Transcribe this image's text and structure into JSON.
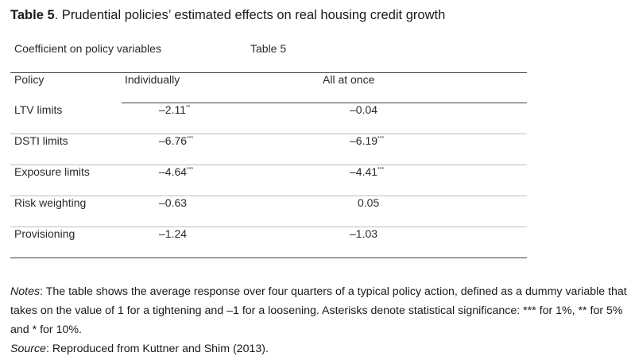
{
  "title": {
    "label": "Table 5",
    "text": ". Prudential policies’ estimated effects on real housing credit growth"
  },
  "caption": "Coefficient on policy variables",
  "table_label": "Table 5",
  "columns": [
    "Policy",
    "Individually",
    "All at once"
  ],
  "rows": [
    {
      "policy": "LTV limits",
      "individually": "–2.11",
      "ind_sig": "**",
      "all": "–0.04",
      "all_sig": ""
    },
    {
      "policy": "DSTI limits",
      "individually": "–6.76",
      "ind_sig": "***",
      "all": "–6.19",
      "all_sig": "***"
    },
    {
      "policy": "Exposure limits",
      "individually": "–4.64",
      "ind_sig": "***",
      "all": "–4.41",
      "all_sig": "***"
    },
    {
      "policy": "Risk weighting",
      "individually": "–0.63",
      "ind_sig": "",
      "all": "0.05",
      "all_sig": ""
    },
    {
      "policy": "Provisioning",
      "individually": "–1.24",
      "ind_sig": "",
      "all": "–1.03",
      "all_sig": ""
    }
  ],
  "notes": {
    "label": "Notes",
    "text": ": The table shows the average response over four quarters of a typical policy action, defined as a dummy variable that takes on the value of 1 for a tightening and –1 for a loosening. Asterisks denote statistical significance: *** for 1%, ** for 5% and * for 10%."
  },
  "source": {
    "label": "Source",
    "text": ": Reproduced from Kuttner and Shim (2013)."
  }
}
